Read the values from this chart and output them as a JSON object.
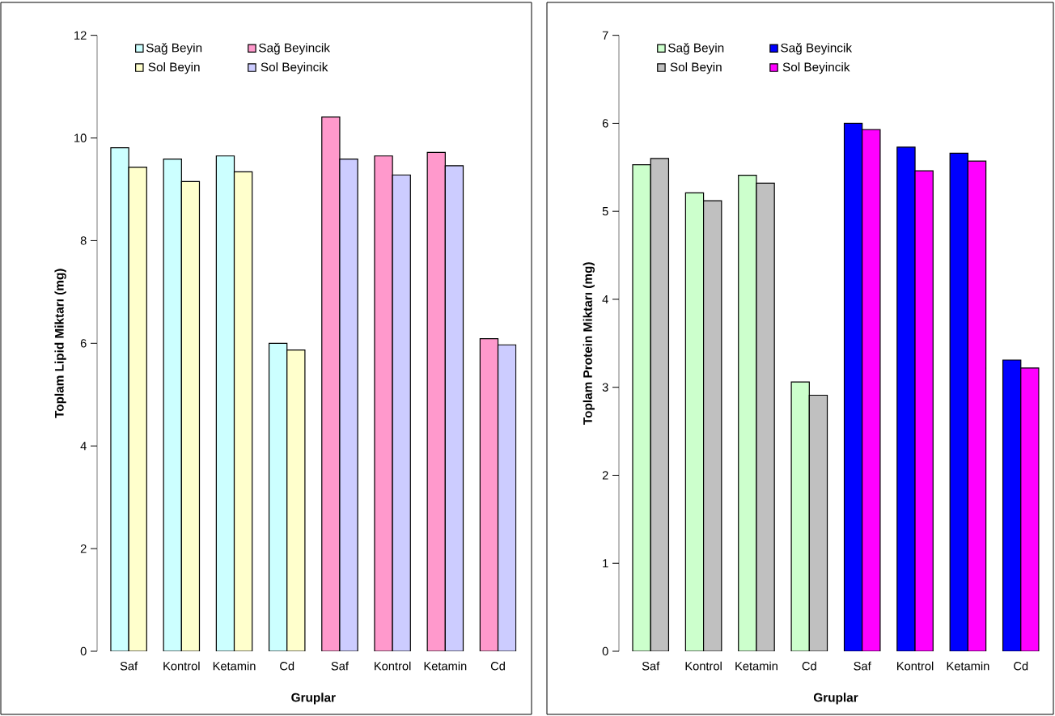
{
  "chart_data": [
    {
      "type": "bar",
      "xlabel": "Gruplar",
      "ylabel": "Toplam Lipid Miktarı (mg)",
      "categories": [
        "Saf",
        "Kontrol",
        "Ketamin",
        "Cd",
        "Saf",
        "Kontrol",
        "Ketamin",
        "Cd"
      ],
      "series": [
        {
          "name": "Sağ Beyin",
          "color": "#ccffff",
          "values": [
            9.81,
            9.59,
            9.65,
            6.0,
            null,
            null,
            null,
            null
          ]
        },
        {
          "name": "Sol Beyin",
          "color": "#ffffcc",
          "values": [
            9.43,
            9.15,
            9.34,
            5.87,
            null,
            null,
            null,
            null
          ]
        },
        {
          "name": "Sağ Beyincik",
          "color": "#ff99cc",
          "values": [
            null,
            null,
            null,
            null,
            10.41,
            9.65,
            9.72,
            6.09
          ]
        },
        {
          "name": "Sol Beyincik",
          "color": "#ccccff",
          "values": [
            null,
            null,
            null,
            null,
            9.59,
            9.28,
            9.46,
            5.97
          ]
        }
      ],
      "ylim": [
        0,
        12
      ],
      "yticks": [
        0,
        2,
        4,
        6,
        8,
        10,
        12
      ],
      "legend": "top"
    },
    {
      "type": "bar",
      "xlabel": "Gruplar",
      "ylabel": "Toplam Protein Miktarı (mg)",
      "categories": [
        "Saf",
        "Kontrol",
        "Ketamin",
        "Cd",
        "Saf",
        "Kontrol",
        "Ketamin",
        "Cd"
      ],
      "series": [
        {
          "name": "Sağ Beyin",
          "color": "#ccffcc",
          "values": [
            5.53,
            5.21,
            5.41,
            3.06,
            null,
            null,
            null,
            null
          ]
        },
        {
          "name": "Sol Beyin",
          "color": "#c0c0c0",
          "values": [
            5.6,
            5.12,
            5.32,
            2.91,
            null,
            null,
            null,
            null
          ]
        },
        {
          "name": "Sağ Beyincik",
          "color": "#0000ff",
          "values": [
            null,
            null,
            null,
            null,
            6.0,
            5.73,
            5.66,
            3.31
          ]
        },
        {
          "name": "Sol Beyincik",
          "color": "#ff00ff",
          "values": [
            null,
            null,
            null,
            null,
            5.93,
            5.46,
            5.57,
            3.22
          ]
        }
      ],
      "ylim": [
        0,
        7
      ],
      "yticks": [
        0,
        1,
        2,
        3,
        4,
        5,
        6,
        7
      ],
      "legend": "top"
    }
  ]
}
